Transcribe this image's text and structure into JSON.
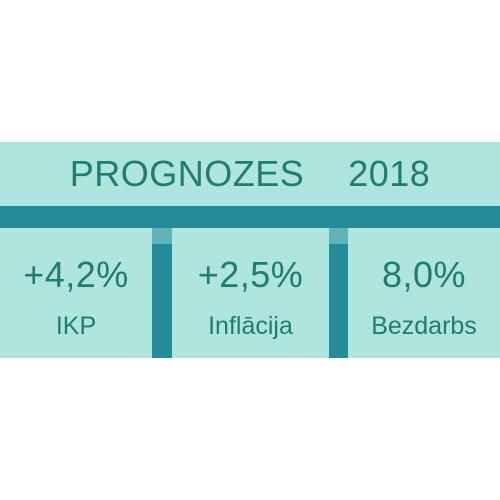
{
  "header": {
    "title": "PROGNOZES",
    "year": "2018"
  },
  "cards": [
    {
      "value": "+4,2%",
      "label": "IKP"
    },
    {
      "value": "+2,5%",
      "label": "Inflācija"
    },
    {
      "value": "8,0%",
      "label": "Bezdarbs"
    }
  ],
  "colors": {
    "panel_background": "#aee5dd",
    "frame": "#248b98",
    "text": "#1f7d73"
  }
}
